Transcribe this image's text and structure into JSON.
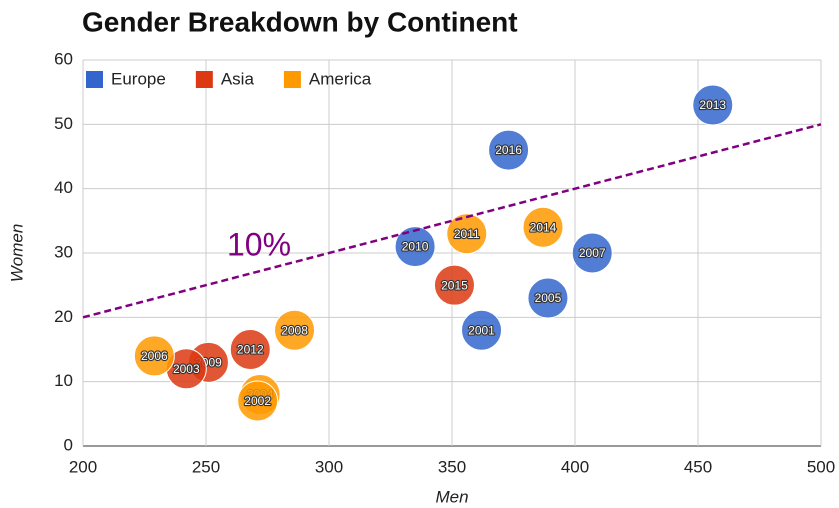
{
  "chart_data": {
    "type": "bubble",
    "title": "Gender Breakdown by Continent",
    "x_label": "Men",
    "y_label": "Women",
    "xlim": [
      200,
      500
    ],
    "xticks": [
      200,
      250,
      300,
      350,
      400,
      450,
      500
    ],
    "ylim": [
      0,
      60
    ],
    "yticks": [
      0,
      10,
      20,
      30,
      40,
      50,
      60
    ],
    "grid": true,
    "legend": "top-left",
    "series": [
      {
        "name": "Europe",
        "color": "#3366cc",
        "x": [
          456,
          373,
          335,
          407,
          389,
          362
        ],
        "values": [
          53,
          46,
          31,
          30,
          23,
          18
        ],
        "labels": [
          "2013",
          "2016",
          "2010",
          "2007",
          "2005",
          "2001"
        ]
      },
      {
        "name": "Asia",
        "color": "#dc3912",
        "x": [
          351,
          268,
          251,
          242
        ],
        "values": [
          25,
          15,
          13,
          12
        ],
        "labels": [
          "2015",
          "2012",
          "2009",
          "2003"
        ]
      },
      {
        "name": "America",
        "color": "#ff9900",
        "x": [
          356,
          387,
          286,
          229,
          272,
          271
        ],
        "values": [
          33,
          34,
          18,
          14,
          8,
          7
        ],
        "labels": [
          "2011",
          "2014",
          "2008",
          "2006",
          "2004",
          "2002"
        ]
      }
    ],
    "trendline": {
      "x": [
        200,
        500
      ],
      "values": [
        20,
        50
      ],
      "label": "10%",
      "color": "#800080"
    }
  }
}
